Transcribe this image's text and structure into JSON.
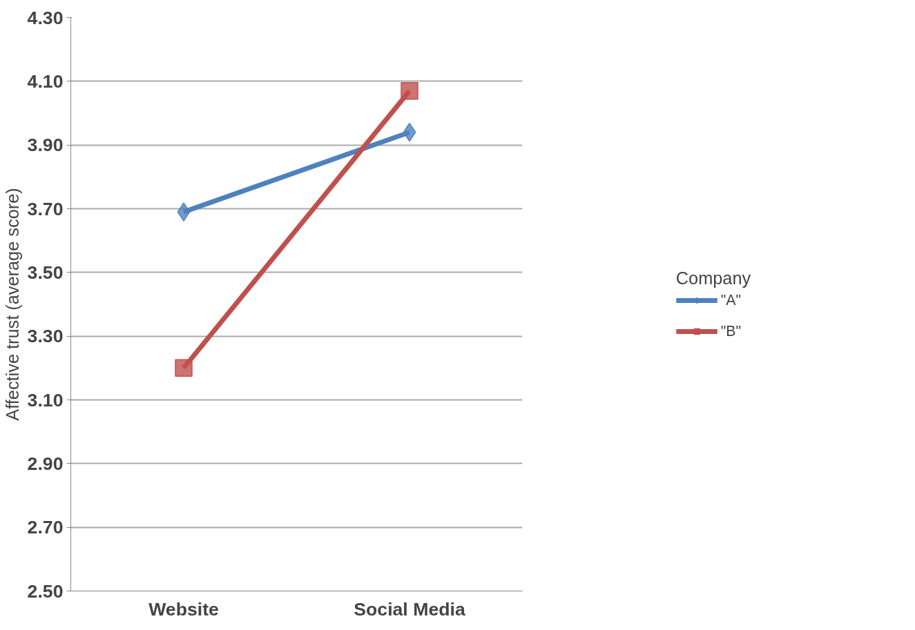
{
  "chart_data": {
    "type": "line",
    "ylabel": "Affective trust (average score)",
    "legend_title": "Company",
    "categories": [
      "Website",
      "Social Media"
    ],
    "series": [
      {
        "name": "\"A\"",
        "color": "#4f81bd",
        "marker": "diamond",
        "values": [
          3.69,
          3.94
        ]
      },
      {
        "name": "\"B\"",
        "color": "#c0504d",
        "marker": "square",
        "values": [
          3.2,
          4.07
        ]
      }
    ],
    "ylim": [
      2.5,
      4.3
    ],
    "yticks": [
      {
        "value": 2.5,
        "label": "2.50"
      },
      {
        "value": 2.7,
        "label": "2.70"
      },
      {
        "value": 2.9,
        "label": "2.90"
      },
      {
        "value": 3.1,
        "label": "3.10"
      },
      {
        "value": 3.3,
        "label": "3.30"
      },
      {
        "value": 3.5,
        "label": "3.50"
      },
      {
        "value": 3.7,
        "label": "3.70"
      },
      {
        "value": 3.9,
        "label": "3.90"
      },
      {
        "value": 4.1,
        "label": "4.10"
      },
      {
        "value": 4.3,
        "label": "4.30"
      }
    ],
    "grid": "y",
    "legend": "right",
    "line_style": "solid"
  }
}
